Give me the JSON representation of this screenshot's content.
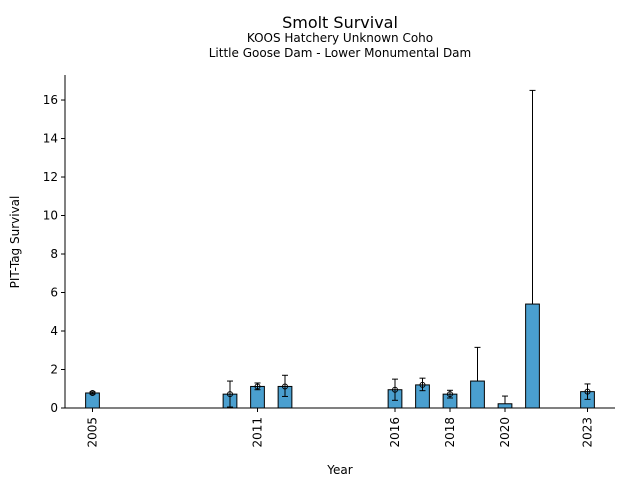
{
  "chart_data": {
    "type": "bar",
    "title": "Smolt Survival",
    "subtitle_lines": [
      "KOOS Hatchery Unknown Coho",
      "Little Goose Dam - Lower Monumental Dam"
    ],
    "xlabel": "Year",
    "ylabel": "PIT-Tag Survival",
    "xlim": [
      2004,
      2024
    ],
    "ylim": [
      0,
      17.3
    ],
    "x_ticks": [
      2005,
      2011,
      2016,
      2018,
      2020,
      2023
    ],
    "y_ticks": [
      0,
      2,
      4,
      6,
      8,
      10,
      12,
      14,
      16
    ],
    "bar_color": "#4a9fcf",
    "grid": false,
    "points": [
      {
        "year": 2005,
        "value": 0.78,
        "err_low": 0.72,
        "err_high": 0.84,
        "marker": true
      },
      {
        "year": 2010,
        "value": 0.72,
        "err_low": 0.05,
        "err_high": 1.4,
        "marker": true
      },
      {
        "year": 2011,
        "value": 1.12,
        "err_low": 0.95,
        "err_high": 1.3,
        "marker": true
      },
      {
        "year": 2012,
        "value": 1.12,
        "err_low": 0.6,
        "err_high": 1.7,
        "marker": true
      },
      {
        "year": 2016,
        "value": 0.95,
        "err_low": 0.4,
        "err_high": 1.5,
        "marker": true
      },
      {
        "year": 2017,
        "value": 1.2,
        "err_low": 0.9,
        "err_high": 1.55,
        "marker": true
      },
      {
        "year": 2018,
        "value": 0.72,
        "err_low": 0.52,
        "err_high": 0.92,
        "marker": true
      },
      {
        "year": 2019,
        "value": 1.4,
        "err_low": 1.4,
        "err_high": 3.15,
        "marker": false
      },
      {
        "year": 2020,
        "value": 0.22,
        "err_low": 0.22,
        "err_high": 0.62,
        "marker": false
      },
      {
        "year": 2021,
        "value": 5.4,
        "err_low": 5.4,
        "err_high": 16.5,
        "marker": false
      },
      {
        "year": 2023,
        "value": 0.85,
        "err_low": 0.45,
        "err_high": 1.25,
        "marker": true
      }
    ]
  }
}
